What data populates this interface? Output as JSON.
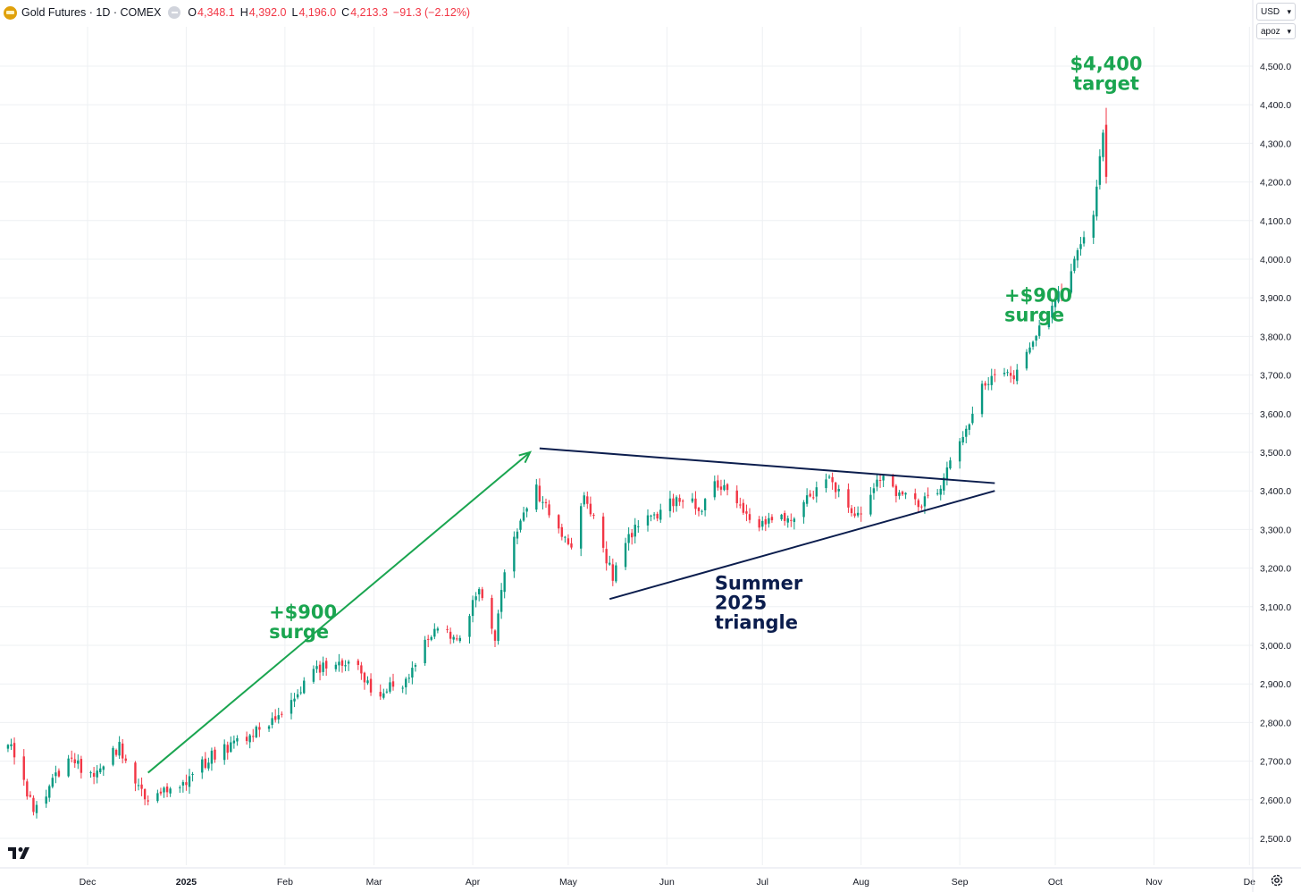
{
  "header": {
    "symbol_title": "Gold Futures · 1D · COMEX",
    "open_label": "O",
    "open_value": "4,348.1",
    "high_label": "H",
    "high_value": "4,392.0",
    "low_label": "L",
    "low_value": "4,196.0",
    "close_label": "C",
    "close_value": "4,213.3",
    "change_value": "−91.3 (−2.12%)"
  },
  "toolbar": {
    "currency": "USD",
    "unit": "apoz"
  },
  "colors": {
    "up": "#089981",
    "down": "#f23645",
    "annotation_green": "#1aa550",
    "trendline": "#0b1d4d",
    "grid": "#eef0f3"
  },
  "chart_data": {
    "type": "candlestick",
    "title": "Gold Futures · 1D · COMEX",
    "ylim": [
      2450,
      4600
    ],
    "y_ticks": [
      {
        "value": 4500,
        "label": "4,500.0"
      },
      {
        "value": 4400,
        "label": "4,400.0"
      },
      {
        "value": 4300,
        "label": "4,300.0"
      },
      {
        "value": 4200,
        "label": "4,200.0"
      },
      {
        "value": 4100,
        "label": "4,100.0"
      },
      {
        "value": 4000,
        "label": "4,000.0"
      },
      {
        "value": 3900,
        "label": "3,900.0"
      },
      {
        "value": 3800,
        "label": "3,800.0"
      },
      {
        "value": 3700,
        "label": "3,700.0"
      },
      {
        "value": 3600,
        "label": "3,600.0"
      },
      {
        "value": 3500,
        "label": "3,500.0"
      },
      {
        "value": 3400,
        "label": "3,400.0"
      },
      {
        "value": 3300,
        "label": "3,300.0"
      },
      {
        "value": 3200,
        "label": "3,200.0"
      },
      {
        "value": 3100,
        "label": "3,100.0"
      },
      {
        "value": 3000,
        "label": "3,000.0"
      },
      {
        "value": 2900,
        "label": "2,900.0"
      },
      {
        "value": 2800,
        "label": "2,800.0"
      },
      {
        "value": 2700,
        "label": "2,700.0"
      },
      {
        "value": 2600,
        "label": "2,600.0"
      },
      {
        "value": 2500,
        "label": "2,500.0"
      }
    ],
    "x_ticks": [
      {
        "label": "Dec",
        "date": "2024-12-01",
        "bold": false
      },
      {
        "label": "2025",
        "date": "2025-01-01",
        "bold": true
      },
      {
        "label": "Feb",
        "date": "2025-02-01",
        "bold": false
      },
      {
        "label": "Mar",
        "date": "2025-03-01",
        "bold": false
      },
      {
        "label": "Apr",
        "date": "2025-04-01",
        "bold": false
      },
      {
        "label": "May",
        "date": "2025-05-01",
        "bold": false
      },
      {
        "label": "Jun",
        "date": "2025-06-01",
        "bold": false
      },
      {
        "label": "Jul",
        "date": "2025-07-01",
        "bold": false
      },
      {
        "label": "Aug",
        "date": "2025-08-01",
        "bold": false
      },
      {
        "label": "Sep",
        "date": "2025-09-01",
        "bold": false
      },
      {
        "label": "Oct",
        "date": "2025-10-01",
        "bold": false
      },
      {
        "label": "Nov",
        "date": "2025-11-01",
        "bold": false
      },
      {
        "label": "De",
        "date": "2025-12-01",
        "bold": false
      }
    ],
    "anchor_points": [
      [
        "2024-11-06",
        2750
      ],
      [
        "2024-11-14",
        2570
      ],
      [
        "2024-11-25",
        2710
      ],
      [
        "2024-12-01",
        2660
      ],
      [
        "2024-12-11",
        2740
      ],
      [
        "2024-12-19",
        2610
      ],
      [
        "2024-12-31",
        2640
      ],
      [
        "2025-01-10",
        2720
      ],
      [
        "2025-01-24",
        2780
      ],
      [
        "2025-02-03",
        2850
      ],
      [
        "2025-02-11",
        2940
      ],
      [
        "2025-02-24",
        2960
      ],
      [
        "2025-02-28",
        2870
      ],
      [
        "2025-03-10",
        2900
      ],
      [
        "2025-03-20",
        3040
      ],
      [
        "2025-03-28",
        3020
      ],
      [
        "2025-04-03",
        3150
      ],
      [
        "2025-04-08",
        3000
      ],
      [
        "2025-04-11",
        3200
      ],
      [
        "2025-04-21",
        3420
      ],
      [
        "2025-04-22",
        3380
      ],
      [
        "2025-04-30",
        3280
      ],
      [
        "2025-05-02",
        3240
      ],
      [
        "2025-05-06",
        3400
      ],
      [
        "2025-05-09",
        3320
      ],
      [
        "2025-05-15",
        3180
      ],
      [
        "2025-05-21",
        3290
      ],
      [
        "2025-06-04",
        3380
      ],
      [
        "2025-06-12",
        3360
      ],
      [
        "2025-06-16",
        3420
      ],
      [
        "2025-06-23",
        3370
      ],
      [
        "2025-06-30",
        3300
      ],
      [
        "2025-07-03",
        3340
      ],
      [
        "2025-07-09",
        3320
      ],
      [
        "2025-07-22",
        3440
      ],
      [
        "2025-07-30",
        3320
      ],
      [
        "2025-08-07",
        3440
      ],
      [
        "2025-08-12",
        3400
      ],
      [
        "2025-08-20",
        3360
      ],
      [
        "2025-08-26",
        3420
      ],
      [
        "2025-09-01",
        3520
      ],
      [
        "2025-09-08",
        3680
      ],
      [
        "2025-09-19",
        3700
      ],
      [
        "2025-09-24",
        3790
      ],
      [
        "2025-10-01",
        3880
      ],
      [
        "2025-10-06",
        3980
      ],
      [
        "2025-10-09",
        4040
      ],
      [
        "2025-10-13",
        4120
      ],
      [
        "2025-10-16",
        4340
      ],
      [
        "2025-10-17",
        4213
      ]
    ],
    "last_candle": {
      "date": "2025-10-17",
      "open": 4348.1,
      "high": 4392.0,
      "low": 4196.0,
      "close": 4213.3
    },
    "trendlines": [
      {
        "name": "triangle-upper",
        "start": [
          "2025-04-22",
          3510
        ],
        "end": [
          "2025-09-12",
          3420
        ]
      },
      {
        "name": "triangle-lower",
        "start": [
          "2025-05-14",
          3120
        ],
        "end": [
          "2025-09-12",
          3400
        ]
      }
    ],
    "arrow": {
      "name": "surge-arrow-1",
      "start": [
        "2024-12-20",
        2670
      ],
      "end": [
        "2025-04-19",
        3500
      ]
    },
    "annotations": [
      {
        "name": "surge-annotation-1",
        "lines": [
          "+$900",
          "surge"
        ],
        "anchor": [
          "2025-01-27",
          3070
        ],
        "color": "green"
      },
      {
        "name": "triangle-annotation",
        "lines": [
          "Summer",
          "2025",
          "triangle"
        ],
        "anchor": [
          "2025-06-16",
          3145
        ],
        "color": "navy"
      },
      {
        "name": "surge-annotation-2",
        "lines": [
          "+$900",
          "surge"
        ],
        "anchor": [
          "2025-09-15",
          3890
        ],
        "color": "green"
      },
      {
        "name": "target-annotation",
        "lines": [
          "$4,400",
          "target"
        ],
        "anchor": [
          "2025-10-17",
          4490
        ],
        "color": "green"
      }
    ]
  }
}
